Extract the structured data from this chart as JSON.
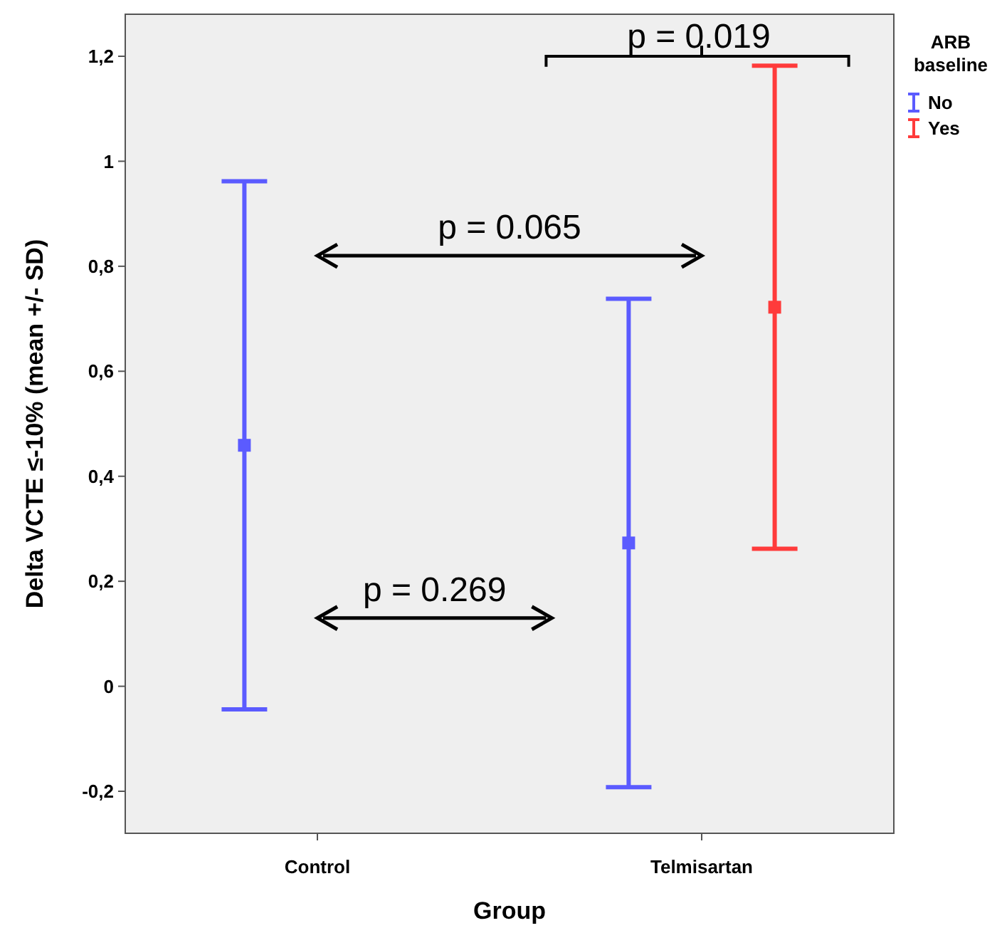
{
  "chart_data": {
    "type": "scatter",
    "xlabel": "Group",
    "ylabel": "Delta VCTE ≤-10% (mean +/- SD)",
    "legend_title": "ARB baseline",
    "legend": "top right",
    "marker": "square",
    "categories": [
      "Control",
      "Telmisartan"
    ],
    "series": [
      {
        "name": "No",
        "color": "#5b5bff",
        "values": [
          0.459,
          0.273
        ],
        "errors": [
          0.503,
          0.465
        ]
      },
      {
        "name": "Yes",
        "color": "#ff3b3b",
        "values": [
          null,
          0.722
        ],
        "errors": [
          null,
          0.46
        ]
      }
    ],
    "ylim": [
      -0.28,
      1.28
    ],
    "yticks": [
      {
        "value": -0.2,
        "label": "-0,2"
      },
      0,
      {
        "value": 0.2,
        "label": "0,2"
      },
      {
        "value": 0.4,
        "label": "0,4"
      },
      {
        "value": 0.6,
        "label": "0,6"
      },
      {
        "value": 0.8,
        "label": "0,8"
      },
      1,
      {
        "value": 1.2,
        "label": "1,2"
      }
    ],
    "annotations": [
      "p = 0.019",
      "p = 0.065",
      "p = 0.269"
    ]
  }
}
